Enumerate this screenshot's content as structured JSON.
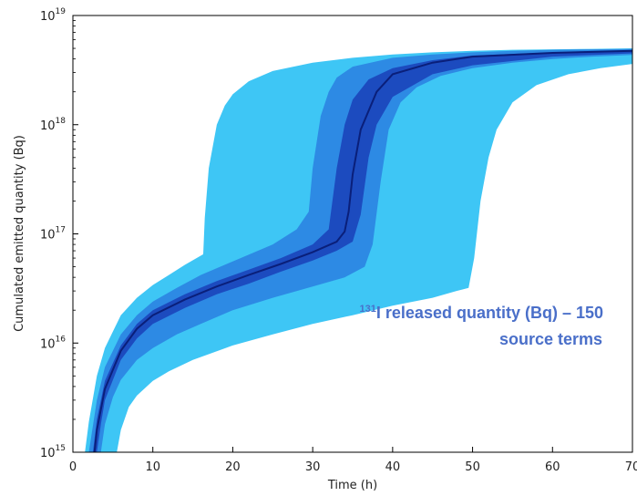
{
  "chart_data": {
    "type": "area",
    "xlabel": "Time (h)",
    "ylabel": "Cumulated emitted quantity (Bq)",
    "xlim": [
      0,
      70
    ],
    "ylim": [
      1000000000000000.0,
      1e+19
    ],
    "yscale": "log",
    "x_ticks": [
      "0",
      "10",
      "20",
      "30",
      "40",
      "50",
      "60",
      "70"
    ],
    "y_ticks": [
      {
        "base": "10",
        "exp": "15"
      },
      {
        "base": "10",
        "exp": "16"
      },
      {
        "base": "10",
        "exp": "17"
      },
      {
        "base": "10",
        "exp": "18"
      },
      {
        "base": "10",
        "exp": "19"
      }
    ],
    "grid": false,
    "annotation": {
      "superscript": "131",
      "line1": "I released quantity (Bq) – 150",
      "line2": "source terms"
    },
    "colors": {
      "light_envelope": "#3ec6f5",
      "medium_band": "#2a7fe0",
      "dark_band": "#1a3fb8",
      "median_line": "#0a1f7a",
      "annotation_text": "#4a6fc9"
    },
    "series": [
      {
        "role": "outer-envelope",
        "upper": {
          "x": [
            1.5,
            2,
            3,
            4,
            6,
            8,
            10,
            12,
            14,
            16.3,
            16.5,
            17,
            18,
            19,
            20,
            22,
            25,
            30,
            35,
            40,
            45,
            50,
            55,
            60,
            65,
            70
          ],
          "y": [
            1000000000000000.0,
            1900000000000000.0,
            5000000000000000.0,
            9000000000000000.0,
            1.8e+16,
            2.6e+16,
            3.4e+16,
            4.2e+16,
            5.2e+16,
            6.5e+16,
            1.4e+17,
            4e+17,
            1e+18,
            1.5e+18,
            1.9e+18,
            2.5e+18,
            3.1e+18,
            3.7e+18,
            4.1e+18,
            4.4e+18,
            4.6e+18,
            4.75e+18,
            4.85e+18,
            4.9e+18,
            4.95e+18,
            5e+18
          ]
        },
        "lower": {
          "x": [
            5.5,
            6,
            7,
            8,
            10,
            12,
            15,
            20,
            25,
            30,
            35,
            40,
            45,
            48,
            49.5,
            50.2,
            51,
            52,
            53,
            55,
            58,
            62,
            66,
            70
          ],
          "y": [
            1000000000000000.0,
            1600000000000000.0,
            2600000000000000.0,
            3300000000000000.0,
            4500000000000000.0,
            5500000000000000.0,
            7000000000000000.0,
            9500000000000000.0,
            1.2e+16,
            1.5e+16,
            1.8e+16,
            2.2e+16,
            2.6e+16,
            3e+16,
            3.2e+16,
            6e+16,
            2e+17,
            5e+17,
            9e+17,
            1.6e+18,
            2.3e+18,
            2.9e+18,
            3.3e+18,
            3.6e+18
          ]
        }
      },
      {
        "role": "central-band",
        "upper": {
          "x": [
            2,
            3,
            4,
            6,
            8,
            10,
            13,
            16,
            20,
            25,
            28,
            29.5,
            30,
            31,
            32,
            33,
            35,
            40,
            45,
            50,
            55,
            60,
            65,
            70
          ],
          "y": [
            1000000000000000.0,
            3000000000000000.0,
            6000000000000000.0,
            1.2e+16,
            1.8e+16,
            2.4e+16,
            3.2e+16,
            4.2e+16,
            5.6e+16,
            8e+16,
            1.1e+17,
            1.6e+17,
            4e+17,
            1.2e+18,
            2e+18,
            2.7e+18,
            3.4e+18,
            4.1e+18,
            4.4e+18,
            4.6e+18,
            4.75e+18,
            4.85e+18,
            4.9e+18,
            4.95e+18
          ]
        },
        "lower": {
          "x": [
            3.5,
            4,
            5,
            6,
            8,
            10,
            13,
            16,
            20,
            25,
            30,
            34,
            36.5,
            37.5,
            38.5,
            39.5,
            41,
            43,
            46,
            50,
            55,
            60,
            65,
            70
          ],
          "y": [
            1000000000000000.0,
            1800000000000000.0,
            3200000000000000.0,
            4600000000000000.0,
            7000000000000000.0,
            9000000000000000.0,
            1.2e+16,
            1.5e+16,
            2e+16,
            2.6e+16,
            3.3e+16,
            4e+16,
            5e+16,
            8e+16,
            3e+17,
            9e+17,
            1.6e+18,
            2.2e+18,
            2.8e+18,
            3.3e+18,
            3.7e+18,
            4e+18,
            4.2e+18,
            4.35e+18
          ]
        }
      },
      {
        "role": "inner-band",
        "upper": {
          "x": [
            2.5,
            3,
            4,
            6,
            8,
            10,
            14,
            18,
            22,
            26,
            30,
            32,
            33,
            34,
            35,
            37,
            40,
            45,
            50,
            60,
            70
          ],
          "y": [
            1000000000000000.0,
            2000000000000000.0,
            4500000000000000.0,
            9500000000000000.0,
            1.5e+16,
            2e+16,
            2.8e+16,
            3.7e+16,
            4.7e+16,
            6e+16,
            8e+16,
            1.1e+17,
            4e+17,
            1e+18,
            1.7e+18,
            2.6e+18,
            3.3e+18,
            3.9e+18,
            4.3e+18,
            4.6e+18,
            4.8e+18
          ]
        },
        "lower": {
          "x": [
            3,
            3.5,
            4,
            6,
            8,
            10,
            14,
            18,
            22,
            26,
            30,
            33,
            35,
            36,
            37,
            38,
            40,
            45,
            50,
            60,
            70
          ],
          "y": [
            1000000000000000.0,
            1800000000000000.0,
            3000000000000000.0,
            7000000000000000.0,
            1.1e+16,
            1.5e+16,
            2.1e+16,
            2.8e+16,
            3.5e+16,
            4.5e+16,
            5.7e+16,
            7e+16,
            8.5e+16,
            1.5e+17,
            5e+17,
            1e+18,
            1.8e+18,
            2.9e+18,
            3.5e+18,
            4.2e+18,
            4.5e+18
          ]
        }
      },
      {
        "role": "median",
        "x": [
          2.7,
          3,
          4,
          6,
          8,
          10,
          14,
          18,
          22,
          26,
          30,
          33,
          34,
          34.5,
          35,
          36,
          38,
          40,
          45,
          50,
          60,
          70
        ],
        "y": [
          1000000000000000.0,
          1600000000000000.0,
          3800000000000000.0,
          8500000000000000.0,
          1.35e+16,
          1.8e+16,
          2.5e+16,
          3.3e+16,
          4.2e+16,
          5.3e+16,
          6.8e+16,
          8.5e+16,
          1.05e+17,
          1.6e+17,
          3.5e+17,
          9e+17,
          2e+18,
          2.9e+18,
          3.7e+18,
          4.2e+18,
          4.55e+18,
          4.75e+18
        ]
      }
    ]
  }
}
